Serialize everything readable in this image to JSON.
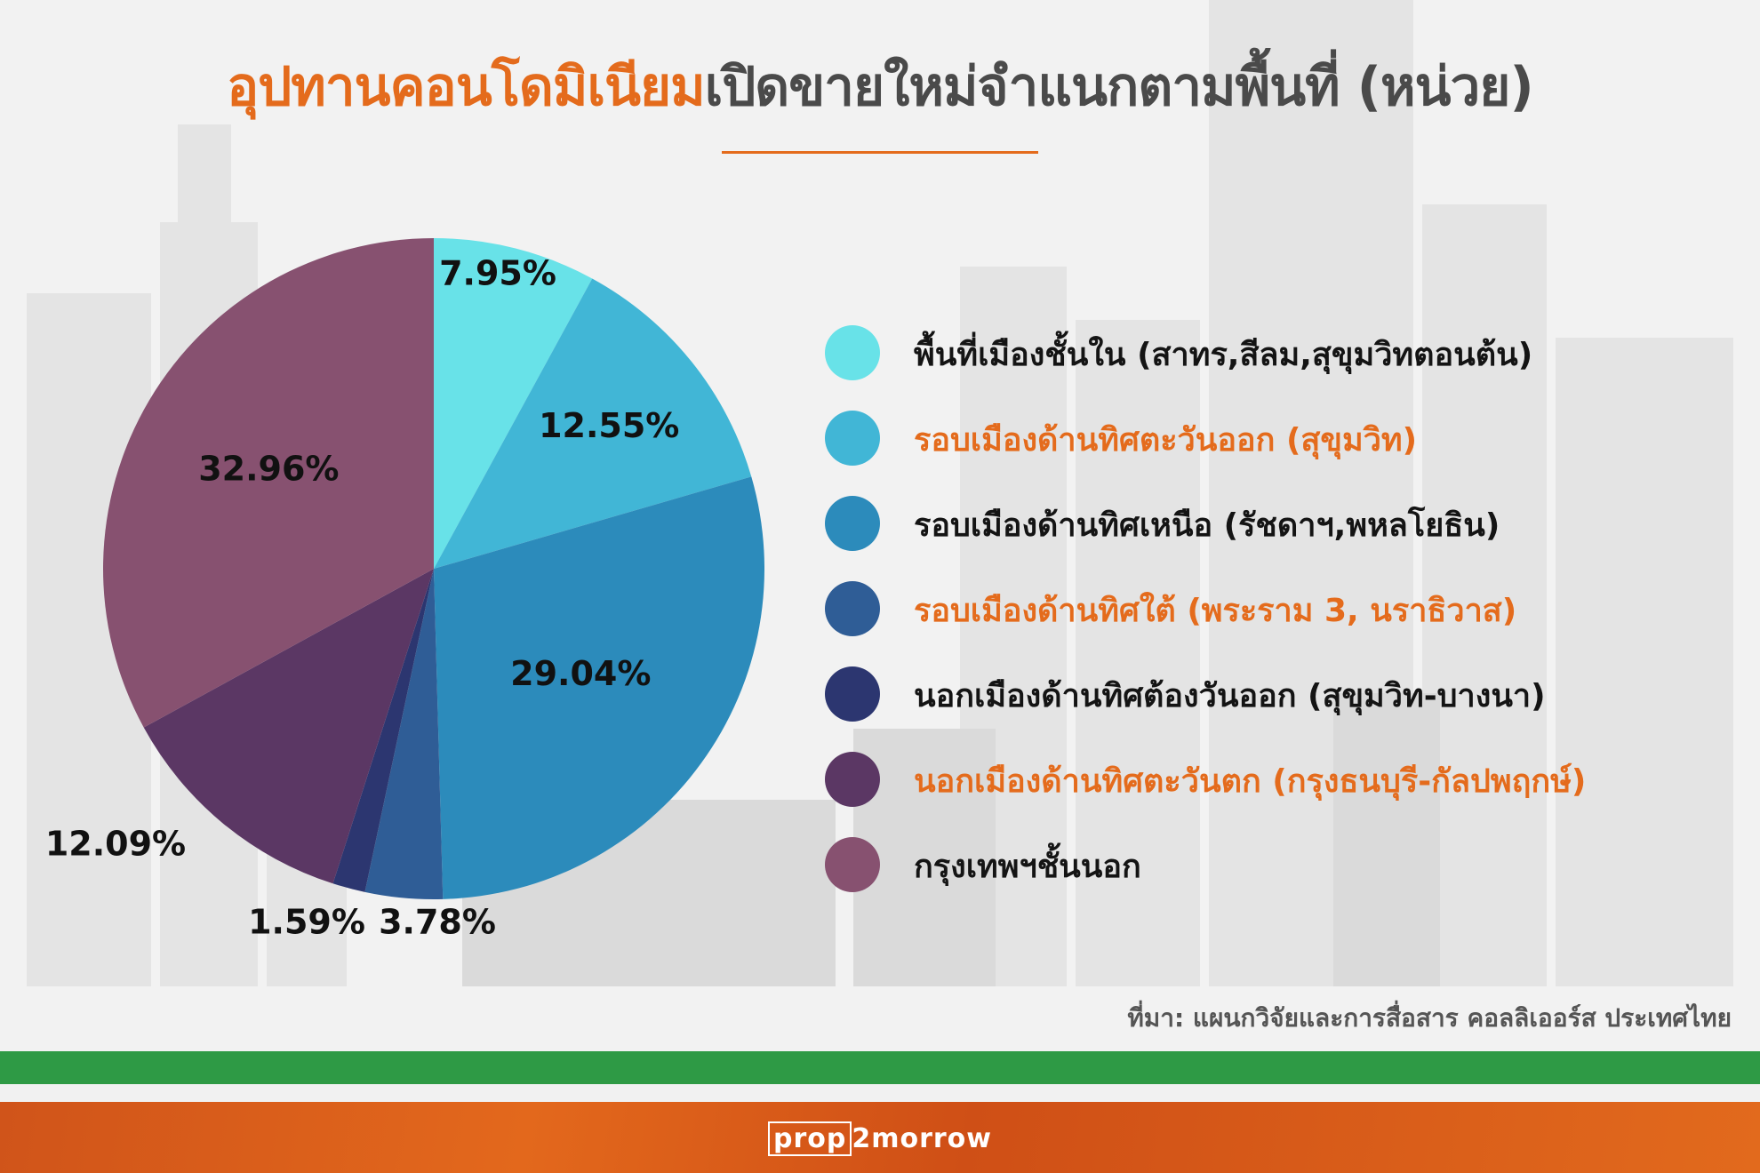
{
  "title": {
    "accent": "อุปทานคอนโดมิเนียม",
    "rest": "เปิดขายใหม่จำแนกตามพื้นที่ (หน่วย)"
  },
  "chart_data": {
    "type": "pie",
    "title": "อุปทานคอนโดมิเนียมเปิดขายใหม่จำแนกตามพื้นที่ (หน่วย)",
    "slices": [
      {
        "label": "พื้นที่เมืองชั้นใน (สาทร,สีลม,สุขุมวิทตอนต้น)",
        "value": 7.95,
        "display": "7.95%",
        "color": "#68e2e8"
      },
      {
        "label": "รอบเมืองด้านทิศตะวันออก (สุขุมวิท)",
        "value": 12.55,
        "display": "12.55%",
        "color": "#41b6d6"
      },
      {
        "label": "รอบเมืองด้านทิศเหนือ (รัชดาฯ,พหลโยธิน)",
        "value": 29.04,
        "display": "29.04%",
        "color": "#2c8bbb"
      },
      {
        "label": "รอบเมืองด้านทิศใต้ (พระราม 3, นราธิวาส)",
        "value": 3.78,
        "display": "3.78%",
        "color": "#2f5d96"
      },
      {
        "label": "นอกเมืองด้านทิศต้องวันออก (สุขุมวิท-บางนา)",
        "value": 1.59,
        "display": "1.59%",
        "color": "#2c3670"
      },
      {
        "label": "นอกเมืองด้านทิศตะวันตก (กรุงธนบุรี-กัลปพฤกษ์)",
        "value": 12.09,
        "display": "12.09%",
        "color": "#5b3764"
      },
      {
        "label": "กรุงเทพฯชั้นนอก",
        "value": 32.96,
        "display": "32.96%",
        "color": "#875170"
      }
    ],
    "legend_position": "right"
  },
  "legend": [
    {
      "label": "พื้นที่เมืองชั้นใน (สาทร,สีลม,สุขุมวิทตอนต้น)",
      "color": "#68e2e8",
      "text_color": "dark"
    },
    {
      "label": "รอบเมืองด้านทิศตะวันออก (สุขุมวิท)",
      "color": "#41b6d6",
      "text_color": "orange"
    },
    {
      "label": "รอบเมืองด้านทิศเหนือ (รัชดาฯ,พหลโยธิน)",
      "color": "#2c8bbb",
      "text_color": "dark"
    },
    {
      "label": "รอบเมืองด้านทิศใต้ (พระราม 3, นราธิวาส)",
      "color": "#2f5d96",
      "text_color": "orange"
    },
    {
      "label": "นอกเมืองด้านทิศต้องวันออก (สุขุมวิท-บางนา)",
      "color": "#2c3670",
      "text_color": "dark"
    },
    {
      "label": "นอกเมืองด้านทิศตะวันตก (กรุงธนบุรี-กัลปพฤกษ์)",
      "color": "#5b3764",
      "text_color": "orange"
    },
    {
      "label": "กรุงเทพฯชั้นนอก",
      "color": "#875170",
      "text_color": "dark"
    }
  ],
  "source": "ที่มา: แผนกวิจัยและการสื่อสาร คอลลิเออร์ส  ประเทศไทย",
  "footer": {
    "logo_box": "prop",
    "logo_rest": "2morrow"
  },
  "colors": {
    "accent": "#e46b1c",
    "green_band": "#2e9a45",
    "orange_band": "#e3681c"
  }
}
